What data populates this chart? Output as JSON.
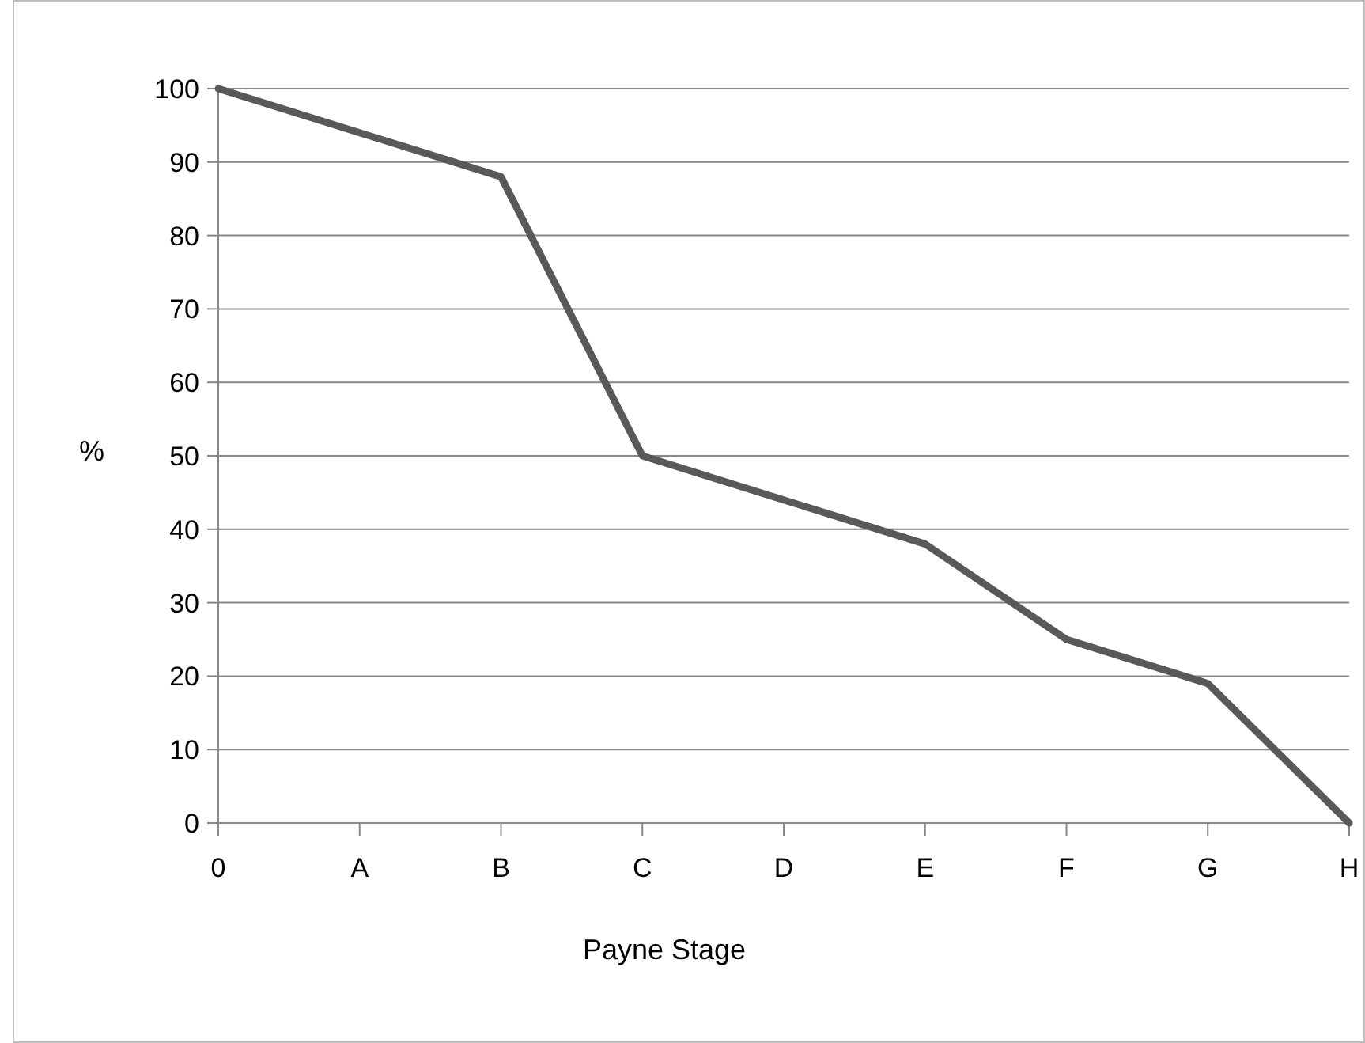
{
  "chart_data": {
    "type": "line",
    "xlabel": "Payne Stage",
    "ylabel": "%",
    "categories": [
      "0",
      "A",
      "B",
      "C",
      "D",
      "E",
      "F",
      "G",
      "H"
    ],
    "series": [
      {
        "color": "#595959",
        "values": [
          100,
          94,
          88,
          50,
          44,
          38,
          25,
          19,
          0
        ]
      }
    ],
    "ylim": [
      0,
      100
    ],
    "yticks": [
      0,
      10,
      20,
      30,
      40,
      50,
      60,
      70,
      80,
      90,
      100
    ],
    "grid": "y",
    "marker": "none",
    "line_style": "solid"
  }
}
